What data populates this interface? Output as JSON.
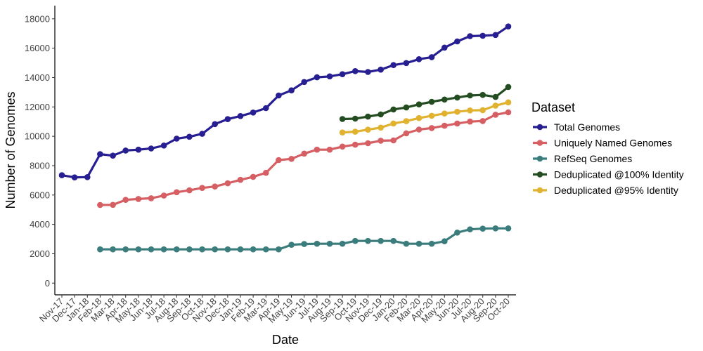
{
  "chart_data": {
    "type": "line",
    "xlabel": "Date",
    "ylabel": "Number of Genomes",
    "ylim": [
      -800,
      18900
    ],
    "yticks": [
      0,
      2000,
      4000,
      6000,
      8000,
      10000,
      12000,
      14000,
      16000,
      18000
    ],
    "grid": false,
    "legend_title": "Dataset",
    "legend_position": "right",
    "x": [
      "Nov-17",
      "Dec-17",
      "Jan-18",
      "Feb-18",
      "Mar-18",
      "Apr-18",
      "May-18",
      "Jun-18",
      "Jul-18",
      "Aug-18",
      "Sep-18",
      "Oct-18",
      "Nov-18",
      "Dec-18",
      "Jan-19",
      "Feb-19",
      "Mar-19",
      "Apr-19",
      "May-19",
      "Jun-19",
      "Jul-19",
      "Aug-19",
      "Sep-19",
      "Oct-19",
      "Nov-19",
      "Dec-19",
      "Jan-20",
      "Feb-20",
      "Mar-20",
      "Apr-20",
      "May-20",
      "Jun-20",
      "Jul-20",
      "Aug-20",
      "Sep-20",
      "Oct-20"
    ],
    "series": [
      {
        "name": "Total Genomes",
        "color": "#261e91",
        "values": [
          7350,
          7200,
          7220,
          8780,
          8680,
          9030,
          9090,
          9170,
          9370,
          9840,
          9970,
          10170,
          10830,
          11170,
          11380,
          11620,
          11920,
          12780,
          13130,
          13700,
          14020,
          14080,
          14230,
          14440,
          14380,
          14540,
          14850,
          14990,
          15250,
          15390,
          16040,
          16460,
          16820,
          16850,
          16900,
          17480
        ]
      },
      {
        "name": "Uniquely Named Genomes",
        "color": "#d65f63",
        "values": [
          null,
          null,
          null,
          5320,
          5330,
          5670,
          5730,
          5780,
          5960,
          6190,
          6320,
          6480,
          6580,
          6800,
          7030,
          7240,
          7510,
          8380,
          8460,
          8820,
          9090,
          9090,
          9300,
          9430,
          9530,
          9700,
          9720,
          10200,
          10460,
          10560,
          10720,
          10870,
          11000,
          11040,
          11470,
          11630
        ]
      },
      {
        "name": "RefSeq Genomes",
        "color": "#3b7d7c",
        "values": [
          null,
          null,
          null,
          2300,
          2300,
          2300,
          2300,
          2300,
          2300,
          2300,
          2300,
          2300,
          2300,
          2300,
          2300,
          2300,
          2300,
          2300,
          2610,
          2660,
          2680,
          2680,
          2680,
          2870,
          2870,
          2870,
          2870,
          2680,
          2680,
          2680,
          2850,
          3440,
          3660,
          3710,
          3730,
          3730
        ]
      },
      {
        "name": "Deduplicated @100% Identity",
        "color": "#234c20",
        "values": [
          null,
          null,
          null,
          null,
          null,
          null,
          null,
          null,
          null,
          null,
          null,
          null,
          null,
          null,
          null,
          null,
          null,
          null,
          null,
          null,
          null,
          null,
          11180,
          11200,
          11340,
          11490,
          11830,
          11960,
          12170,
          12350,
          12500,
          12640,
          12780,
          12820,
          12680,
          13360
        ]
      },
      {
        "name": "Deduplicated @95% Identity",
        "color": "#e0b22f",
        "values": [
          null,
          null,
          null,
          null,
          null,
          null,
          null,
          null,
          null,
          null,
          null,
          null,
          null,
          null,
          null,
          null,
          null,
          null,
          null,
          null,
          null,
          null,
          10260,
          10310,
          10450,
          10590,
          10870,
          11030,
          11240,
          11400,
          11550,
          11670,
          11760,
          11780,
          12090,
          12310
        ]
      }
    ]
  }
}
